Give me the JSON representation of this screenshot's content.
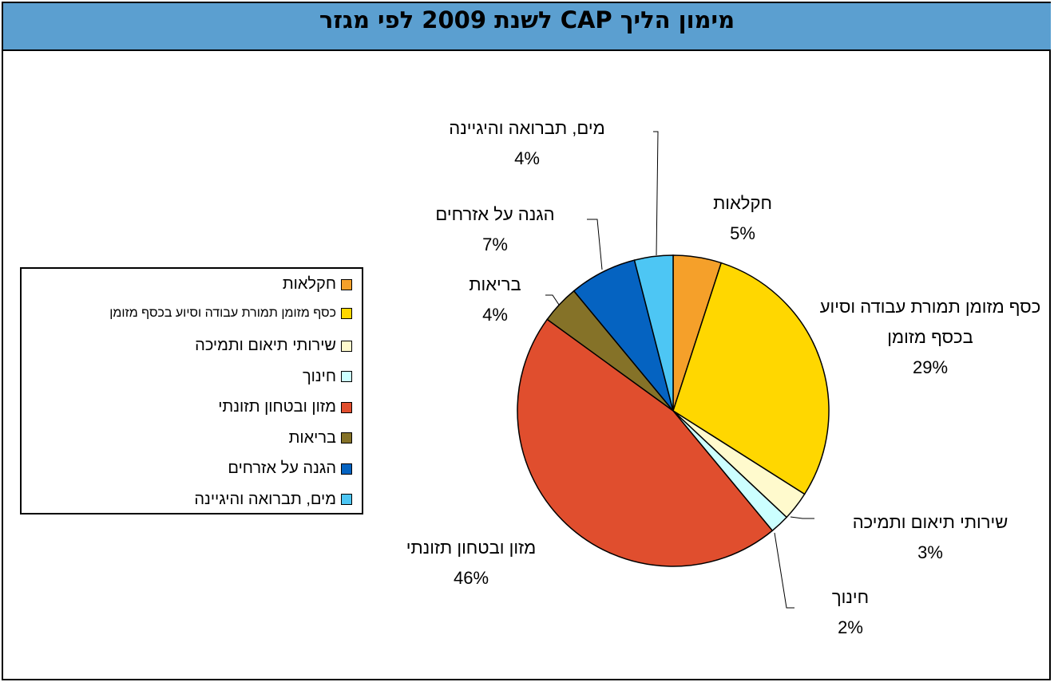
{
  "chart_data": {
    "type": "pie",
    "title": "מימון הליך CAP לשנת 2009 לפי מגזר",
    "categories": [
      "חקלאות",
      "כסף מזומן תמורת עבודה וסיוע בכסף מזומן",
      "שירותי תיאום ותמיכה",
      "חינוך",
      "מזון ובטחון תזונתי",
      "בריאות",
      "הגנה על אזרחים",
      "מים, תברואה והיגיינה"
    ],
    "values": [
      5,
      29,
      3,
      2,
      46,
      4,
      7,
      4
    ],
    "value_labels": [
      "5%",
      "29%",
      "3%",
      "2%",
      "46%",
      "4%",
      "7%",
      "4%"
    ],
    "colors": [
      "#f5a02a",
      "#ffd700",
      "#fffacd",
      "#ccffff",
      "#e04e2e",
      "#857228",
      "#0563c1",
      "#4dc6f4"
    ],
    "legend": "left"
  }
}
